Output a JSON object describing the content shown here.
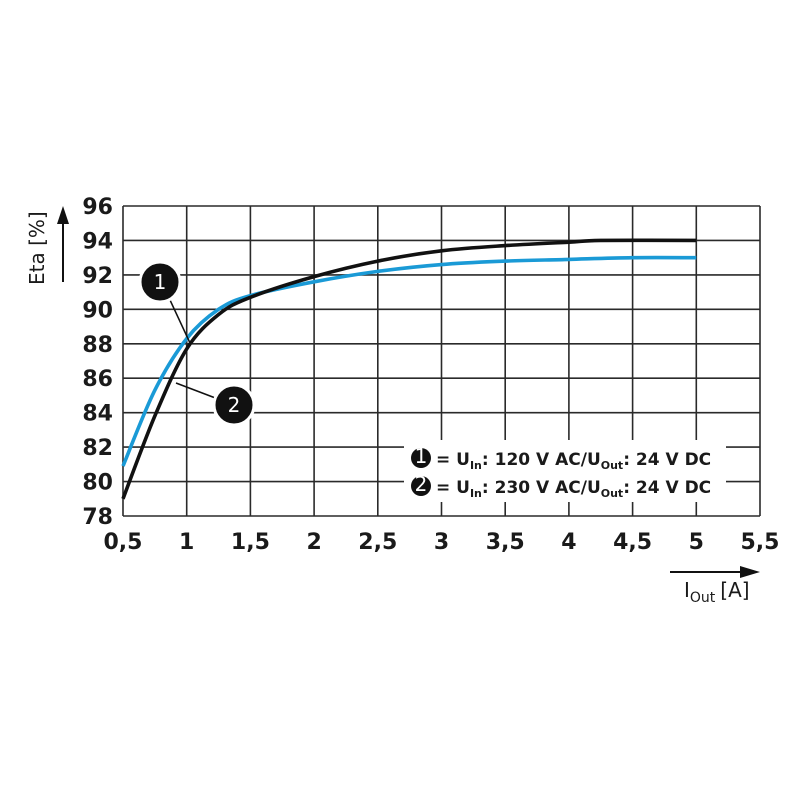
{
  "chart_data": {
    "type": "line",
    "title": "",
    "xlabel": "I_Out [A]",
    "ylabel": "Eta [%]",
    "xlim": [
      0.5,
      5.5
    ],
    "ylim": [
      78,
      96
    ],
    "grid": true,
    "x_ticks": [
      "0,5",
      "1",
      "1,5",
      "2",
      "2,5",
      "3",
      "3,5",
      "4",
      "4,5",
      "5",
      "5,5"
    ],
    "y_ticks": [
      "78",
      "80",
      "82",
      "84",
      "86",
      "88",
      "90",
      "92",
      "94",
      "96"
    ],
    "legend_position": "lower right inside plot",
    "series": [
      {
        "id": "1",
        "name": "U_In: 120 V AC/U_Out: 24 V DC",
        "color": "#111111",
        "x": [
          0.5,
          0.75,
          1.0,
          1.25,
          1.5,
          2.0,
          2.5,
          3.0,
          3.5,
          4.0,
          4.25,
          5.0
        ],
        "values": [
          79.0,
          83.8,
          87.7,
          89.7,
          90.7,
          91.9,
          92.8,
          93.4,
          93.7,
          93.9,
          94.0,
          94.0
        ]
      },
      {
        "id": "2",
        "name": "U_In: 230 V AC/U_Out: 24 V DC",
        "color": "#1a9ad6",
        "x": [
          0.5,
          0.75,
          1.0,
          1.25,
          1.5,
          2.0,
          2.5,
          3.0,
          3.5,
          4.0,
          4.5,
          5.0
        ],
        "values": [
          80.9,
          85.3,
          88.3,
          90.0,
          90.8,
          91.6,
          92.2,
          92.6,
          92.8,
          92.9,
          93.0,
          93.0
        ]
      }
    ]
  },
  "axes": {
    "y_title": "Eta [%]",
    "x_title_main": "I",
    "x_title_sub": "Out",
    "x_title_unit": "[A]"
  },
  "legend": [
    {
      "num": "1",
      "eq": "= U",
      "in_sub": "In",
      "mid": ": 120 V AC/U",
      "out_sub": "Out",
      "tail": ": 24 V DC"
    },
    {
      "num": "2",
      "eq": "= U",
      "in_sub": "In",
      "mid": ": 230 V AC/U",
      "out_sub": "Out",
      "tail": ": 24 V DC"
    }
  ],
  "callouts": [
    {
      "num": "1"
    },
    {
      "num": "2"
    }
  ]
}
